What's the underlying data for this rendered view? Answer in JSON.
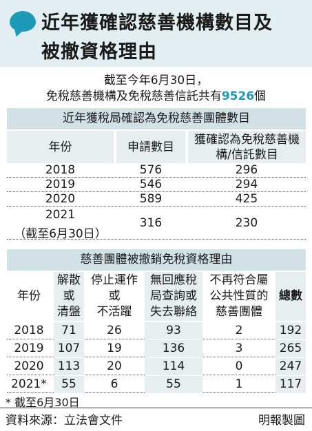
{
  "header": {
    "title_line1": "近年獲確認慈善機構數目及",
    "title_line2": "被撤資格理由"
  },
  "summary": {
    "line1": "截至今年6月30日，",
    "line2_pre": "免稅慈善機構及免稅慈善信託共有",
    "line2_value": "9526",
    "line2_post": "個",
    "accent_color": "#1c9ab8"
  },
  "table1": {
    "title": "近年獲稅局確認為免稅慈善團體數目",
    "headers": [
      "年份",
      "申請數目",
      "獲確認為免稅慈善機構/信託數目"
    ],
    "rows": [
      {
        "year": "2018",
        "applications": "576",
        "approved": "296"
      },
      {
        "year": "2019",
        "applications": "546",
        "approved": "294"
      },
      {
        "year": "2020",
        "applications": "589",
        "approved": "425"
      }
    ],
    "last_row": {
      "year": "2021",
      "note": "（截至6月30日）",
      "applications": "316",
      "approved": "230"
    }
  },
  "table2": {
    "title": "慈善團體被撤銷免稅資格理由",
    "headers": [
      {
        "lines": [
          "年份"
        ]
      },
      {
        "lines": [
          "解散",
          "或",
          "清盤"
        ]
      },
      {
        "lines": [
          "停止運作",
          "或",
          "不活躍"
        ]
      },
      {
        "lines": [
          "無回應稅",
          "局查詢或",
          "失去聯絡"
        ]
      },
      {
        "lines": [
          "不再符合屬",
          "公共性質的",
          "慈善團體"
        ]
      },
      {
        "lines": [
          "總數"
        ]
      }
    ],
    "rows": [
      {
        "year": "2018",
        "dissolved": "71",
        "inactive": "26",
        "no_response": "93",
        "not_public": "2",
        "total": "192"
      },
      {
        "year": "2019",
        "dissolved": "107",
        "inactive": "19",
        "no_response": "136",
        "not_public": "3",
        "total": "265"
      },
      {
        "year": "2020",
        "dissolved": "113",
        "inactive": "20",
        "no_response": "114",
        "not_public": "0",
        "total": "247"
      },
      {
        "year": "2021*",
        "dissolved": "55",
        "inactive": "6",
        "no_response": "55",
        "not_public": "1",
        "total": "117"
      }
    ]
  },
  "footnote": "* 截至6月30日",
  "source": "資料來源：立法會文件",
  "credit": "明報製圖"
}
